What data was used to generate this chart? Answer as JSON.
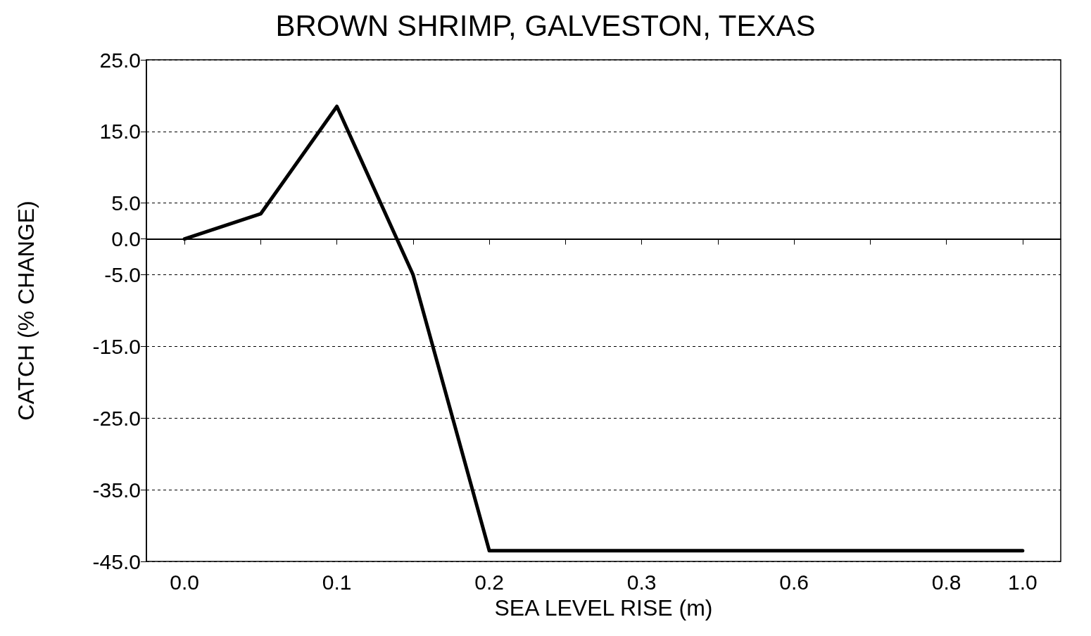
{
  "chart_data": {
    "type": "line",
    "title": "BROWN SHRIMP, GALVESTON, TEXAS",
    "xlabel": "SEA LEVEL RISE (m)",
    "ylabel": "CATCH (% CHANGE)",
    "categories": [
      "0.0",
      null,
      "0.1",
      null,
      "0.2",
      null,
      "0.3",
      null,
      "0.6",
      null,
      "0.8",
      "1.0"
    ],
    "series": [
      {
        "color": "#000000",
        "values": [
          0,
          3.5,
          18.5,
          -5,
          -43.5,
          -43.5,
          -43.5,
          -43.5,
          -43.5,
          -43.5,
          -43.5,
          -43.5
        ]
      }
    ],
    "ylim": [
      -45,
      25
    ],
    "yticks": [
      {
        "value": -45,
        "label": "-45.0"
      },
      {
        "value": -35,
        "label": "-35.0"
      },
      {
        "value": -25,
        "label": "-25.0"
      },
      {
        "value": -15,
        "label": "-15.0"
      },
      {
        "value": -5,
        "label": "-5.0"
      },
      {
        "value": 0,
        "label": "0.0"
      },
      {
        "value": 5,
        "label": "5.0"
      },
      {
        "value": 15,
        "label": "15.0"
      },
      {
        "value": 25,
        "label": "25.0"
      }
    ],
    "grid": "y",
    "marker": "none",
    "line_style": "solid",
    "ref_lines": [
      {
        "axis": "y",
        "value": 0,
        "label": null,
        "color": "#000000",
        "line_style": "solid"
      }
    ]
  }
}
